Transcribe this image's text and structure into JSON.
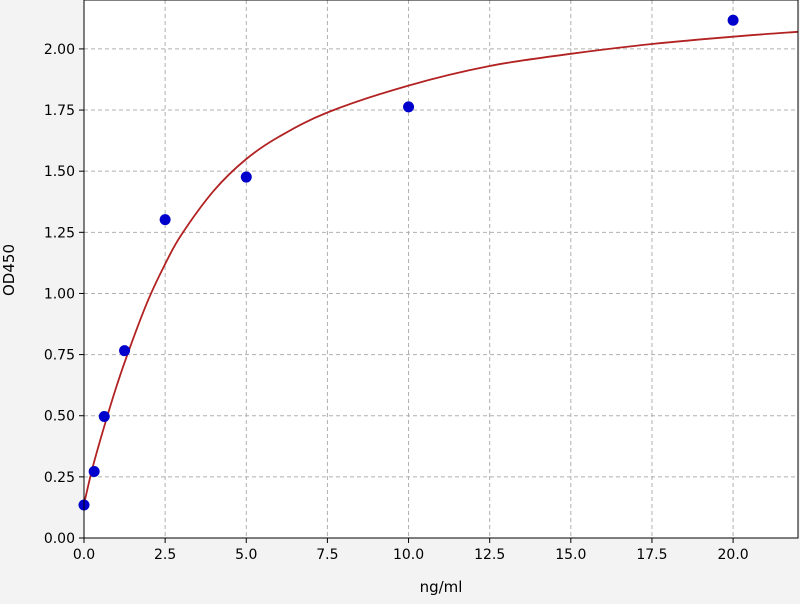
{
  "chart_data": {
    "type": "scatter",
    "xlabel": "ng/ml",
    "ylabel": "OD450",
    "xlim": [
      0,
      22
    ],
    "ylim": [
      0,
      2.2
    ],
    "x_ticks": [
      0,
      2.5,
      5,
      7.5,
      10,
      12.5,
      15,
      17.5,
      20
    ],
    "x_tick_labels": [
      "0.0",
      "2.5",
      "5.0",
      "7.5",
      "10.0",
      "12.5",
      "15.0",
      "17.5",
      "20.0"
    ],
    "y_ticks": [
      0,
      0.25,
      0.5,
      0.75,
      1.0,
      1.25,
      1.5,
      1.75,
      2.0
    ],
    "y_tick_labels": [
      "0.00",
      "0.25",
      "0.50",
      "0.75",
      "1.00",
      "1.25",
      "1.50",
      "1.75",
      "2.00"
    ],
    "grid": true,
    "series": [
      {
        "kind": "points",
        "color": "#0000cc",
        "x": [
          0,
          0.313,
          0.625,
          1.25,
          2.5,
          5,
          10,
          20
        ],
        "y": [
          0.135,
          0.272,
          0.497,
          0.766,
          1.302,
          1.476,
          1.763,
          2.117
        ]
      },
      {
        "kind": "fit-curve",
        "color": "#b22222",
        "x": [
          0,
          0.25,
          0.5,
          1,
          1.5,
          2,
          2.5,
          3,
          4,
          5,
          6,
          7.5,
          10,
          12.5,
          15,
          17.5,
          20,
          22
        ],
        "y": [
          0.14,
          0.28,
          0.4,
          0.62,
          0.81,
          0.98,
          1.12,
          1.24,
          1.42,
          1.55,
          1.64,
          1.74,
          1.85,
          1.93,
          1.98,
          2.02,
          2.05,
          2.07
        ]
      }
    ]
  }
}
